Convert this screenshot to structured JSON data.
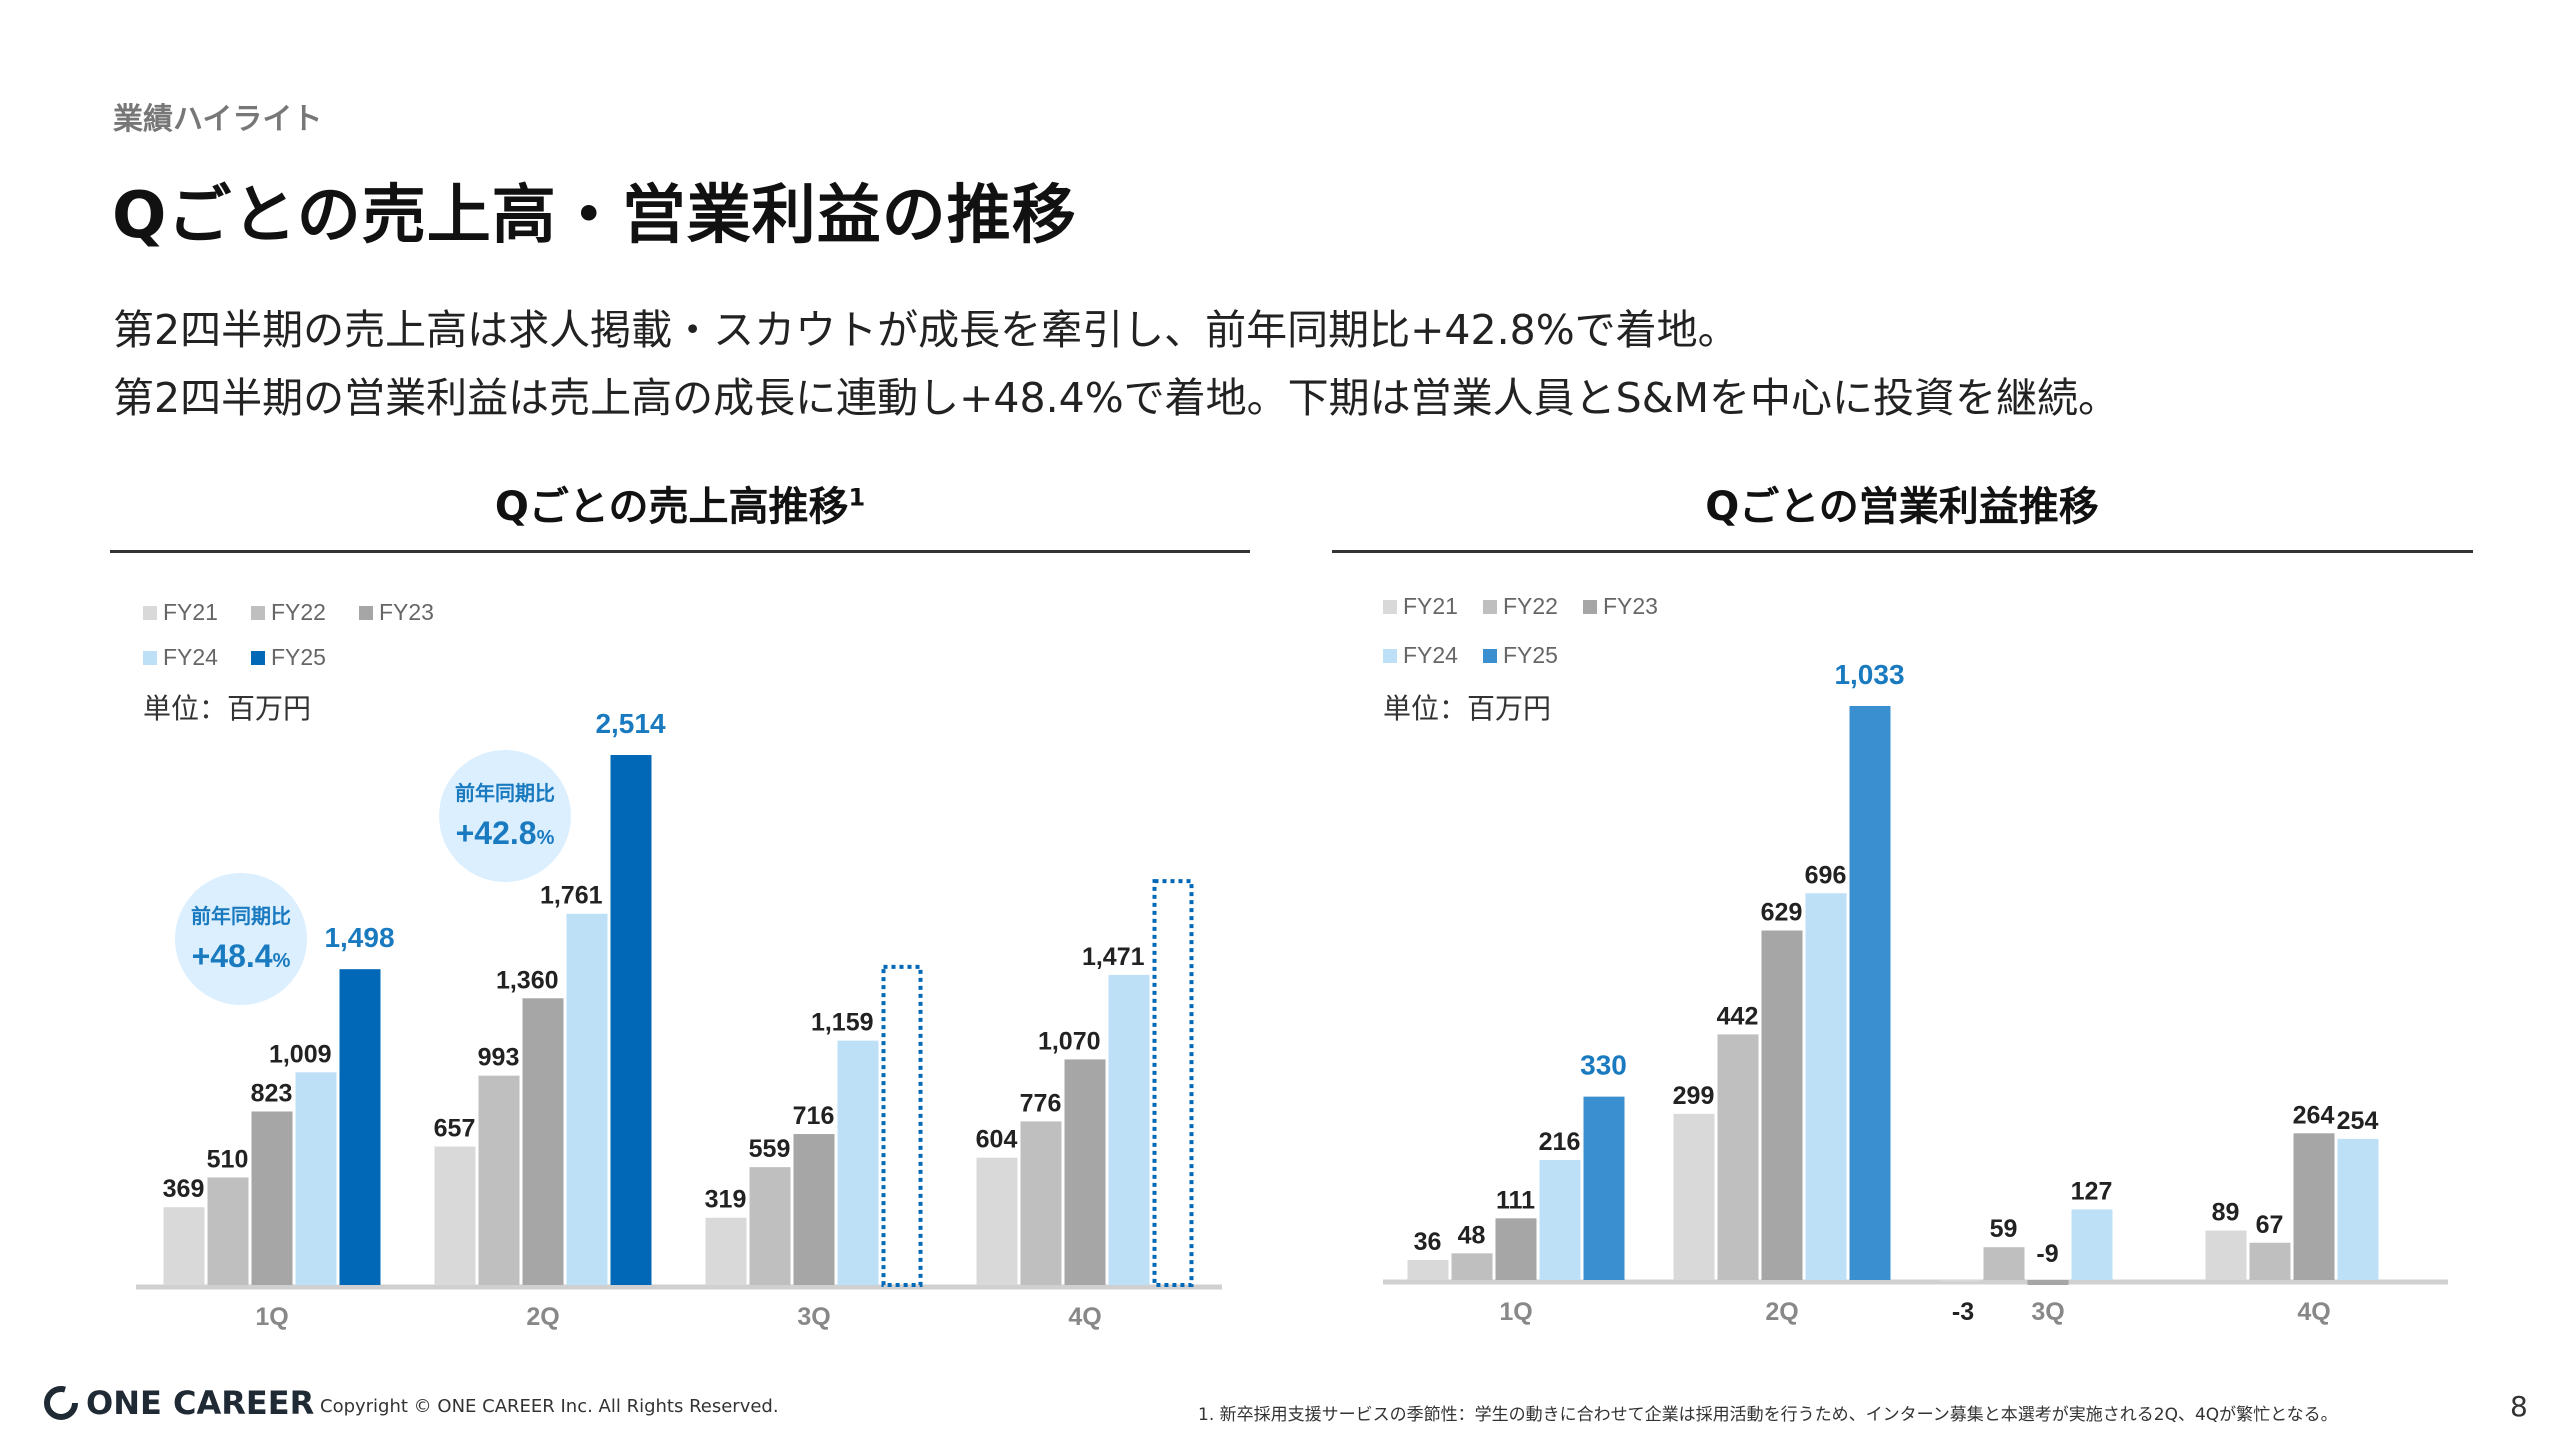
{
  "section_label": "業績ハイライト",
  "title": "Qごとの売上高・営業利益の推移",
  "body_lines": [
    "第2四半期の売上高は求人掲載・スカウトが成長を牽引し、前年同期比+42.8%で着地。",
    "第2四半期の営業利益は売上高の成長に連動し+48.4%で着地。下期は営業人員とS&Mを中心に投資を継続。"
  ],
  "colors": {
    "FY21": "#d9d9d9",
    "FY22": "#bfbfbf",
    "FY23": "#a6a6a6",
    "FY24": "#bde0f7",
    "FY25_sales": "#0068b7",
    "FY25_profit": "#3a8fd0",
    "highlight_text": "#1a7abf",
    "bubble": "#dcefff"
  },
  "chart_data": [
    {
      "type": "bar",
      "title": "Qごとの売上高推移",
      "title_superscript": "1",
      "unit_label": "単位：百万円",
      "categories": [
        "1Q",
        "2Q",
        "3Q",
        "4Q"
      ],
      "series": [
        {
          "name": "FY21",
          "values": [
            369,
            657,
            319,
            604
          ]
        },
        {
          "name": "FY22",
          "values": [
            510,
            993,
            559,
            776
          ]
        },
        {
          "name": "FY23",
          "values": [
            823,
            1360,
            716,
            1070
          ]
        },
        {
          "name": "FY24",
          "values": [
            1009,
            1761,
            1159,
            1471
          ]
        },
        {
          "name": "FY25",
          "values": [
            1498,
            2514,
            null,
            null
          ]
        }
      ],
      "forecast_outline": {
        "series": "FY25",
        "values": [
          null,
          null,
          1509,
          1916
        ]
      },
      "labels": [
        [
          "369",
          "657",
          "319",
          "604"
        ],
        [
          "510",
          "993",
          "559",
          "776"
        ],
        [
          "823",
          "1,360",
          "716",
          "1,070"
        ],
        [
          "1,009",
          "1,761",
          "1,159",
          "1,471"
        ],
        [
          "1,498",
          "2,514",
          "",
          ""
        ]
      ],
      "callouts": [
        {
          "category": "1Q",
          "label": "前年同期比",
          "value": "+48.4",
          "unit": "%"
        },
        {
          "category": "2Q",
          "label": "前年同期比",
          "value": "+42.8",
          "unit": "%"
        }
      ],
      "legend_placement": "top-left",
      "ylim": [
        0,
        2514
      ],
      "grid": false
    },
    {
      "type": "bar",
      "title": "Qごとの営業利益推移",
      "unit_label": "単位：百万円",
      "categories": [
        "1Q",
        "2Q",
        "3Q",
        "4Q"
      ],
      "series": [
        {
          "name": "FY21",
          "values": [
            36,
            299,
            -3,
            89
          ]
        },
        {
          "name": "FY22",
          "values": [
            48,
            442,
            59,
            67
          ]
        },
        {
          "name": "FY23",
          "values": [
            111,
            629,
            -9,
            264
          ]
        },
        {
          "name": "FY24",
          "values": [
            216,
            696,
            127,
            254
          ]
        },
        {
          "name": "FY25",
          "values": [
            330,
            1033,
            null,
            null
          ]
        }
      ],
      "labels": [
        [
          "36",
          "299",
          "-3",
          "89"
        ],
        [
          "48",
          "442",
          "59",
          "67"
        ],
        [
          "111",
          "629",
          "-9",
          "264"
        ],
        [
          "216",
          "696",
          "127",
          "254"
        ],
        [
          "330",
          "1,033",
          "",
          ""
        ]
      ],
      "legend_placement": "top-left",
      "ylim": [
        -9,
        1033
      ],
      "grid": false
    }
  ],
  "footer": {
    "logo_text": "ONE CAREER",
    "copyright": "Copyright © ONE CAREER Inc. All Rights Reserved.",
    "footnote": "1. 新卒採用支援サービスの季節性：学生の動きに合わせて企業は採用活動を行うため、インターン募集と本選考が実施される2Q、4Qが繁忙となる。",
    "page_number": "8"
  }
}
